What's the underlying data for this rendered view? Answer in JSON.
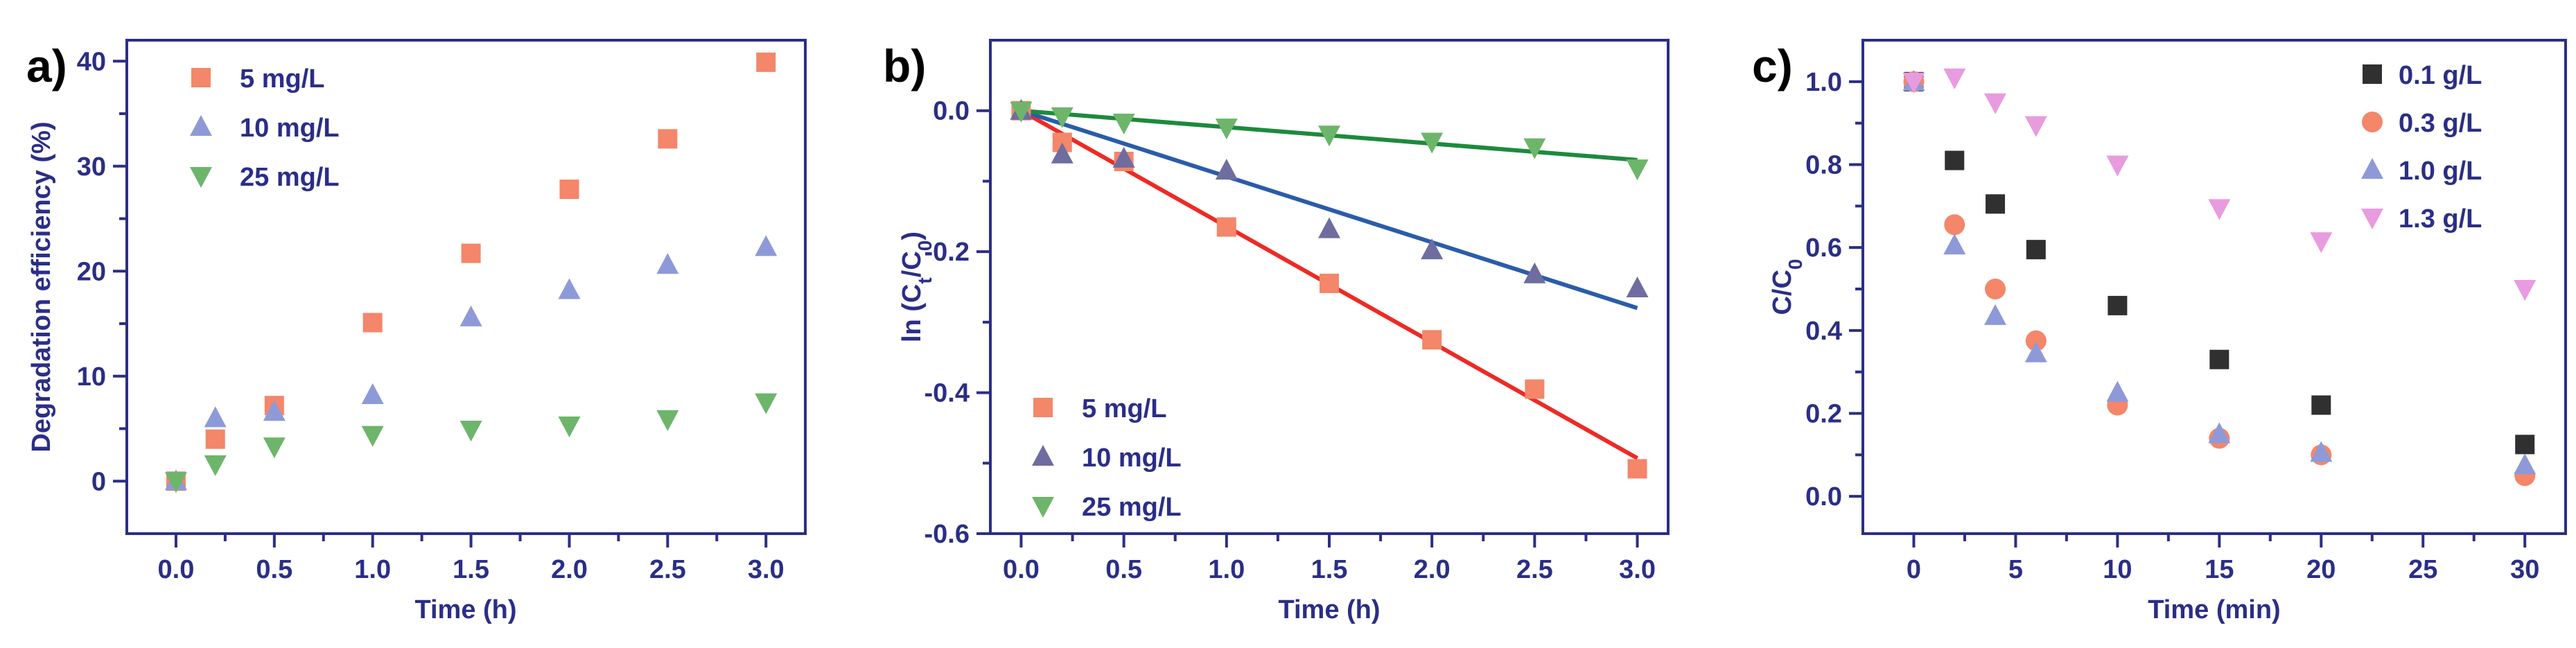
{
  "chart_data": [
    {
      "panel_label": "a)",
      "type": "scatter",
      "xlabel": "Time (h)",
      "ylabel": "Degradation efficiency (%)",
      "xlim": [
        -0.25,
        3.2
      ],
      "ylim": [
        -5,
        42
      ],
      "xticks": [
        0.0,
        0.5,
        1.0,
        1.5,
        2.0,
        2.5,
        3.0
      ],
      "xtick_labels": [
        "0.0",
        "0.5",
        "1.0",
        "1.5",
        "2.0",
        "2.5",
        "3.0"
      ],
      "yticks": [
        0,
        10,
        20,
        30,
        40
      ],
      "ytick_labels": [
        "0",
        "10",
        "20",
        "30",
        "40"
      ],
      "legend_position": "top-left",
      "series": [
        {
          "name": "5 mg/L",
          "marker": "square",
          "color": "#f4866a",
          "x": [
            0,
            0.2,
            0.5,
            1.0,
            1.5,
            2.0,
            2.5,
            3.0
          ],
          "y": [
            0,
            4.0,
            7.2,
            15.1,
            21.7,
            27.8,
            32.6,
            39.9
          ]
        },
        {
          "name": "10 mg/L",
          "marker": "triangle-up",
          "color": "#8e9ad8",
          "x": [
            0,
            0.2,
            0.5,
            1.0,
            1.5,
            2.0,
            2.5,
            3.0
          ],
          "y": [
            0,
            6.0,
            6.6,
            8.2,
            15.6,
            18.2,
            20.6,
            22.3
          ]
        },
        {
          "name": "25 mg/L",
          "marker": "triangle-down",
          "color": "#6db56a",
          "x": [
            0,
            0.2,
            0.5,
            1.0,
            1.5,
            2.0,
            2.5,
            3.0
          ],
          "y": [
            0,
            1.6,
            3.3,
            4.4,
            4.9,
            5.3,
            5.9,
            7.5
          ]
        }
      ]
    },
    {
      "panel_label": "b)",
      "type": "scatter",
      "xlabel": "Time (h)",
      "ylabel_parts": [
        "ln (C",
        "t",
        "/C",
        "0",
        ")"
      ],
      "xlim": [
        -0.15,
        3.15
      ],
      "ylim": [
        -0.6,
        0.1
      ],
      "xticks": [
        0.0,
        0.5,
        1.0,
        1.5,
        2.0,
        2.5,
        3.0
      ],
      "xtick_labels": [
        "0.0",
        "0.5",
        "1.0",
        "1.5",
        "2.0",
        "2.5",
        "3.0"
      ],
      "yticks": [
        0.0,
        -0.2,
        -0.4,
        -0.6
      ],
      "ytick_labels": [
        "0.0",
        "-0.2",
        "-0.4",
        "-0.6"
      ],
      "legend_position": "bottom-left",
      "series": [
        {
          "name": "5 mg/L",
          "marker": "square",
          "color": "#f4866a",
          "fit_color": "#ee2a24",
          "fit": [
            0,
            -0.493
          ],
          "x": [
            0,
            0.2,
            0.5,
            1.0,
            1.5,
            2.0,
            2.5,
            3.0
          ],
          "y": [
            0,
            -0.045,
            -0.072,
            -0.165,
            -0.245,
            -0.325,
            -0.395,
            -0.508
          ]
        },
        {
          "name": "10 mg/L",
          "marker": "triangle-up",
          "color": "#6f6d9f",
          "fit_color": "#2a5caa",
          "fit": [
            0,
            -0.28
          ],
          "x": [
            0,
            0.2,
            0.5,
            1.0,
            1.5,
            2.0,
            2.5,
            3.0
          ],
          "y": [
            0,
            -0.062,
            -0.068,
            -0.085,
            -0.168,
            -0.198,
            -0.232,
            -0.252
          ]
        },
        {
          "name": "25 mg/L",
          "marker": "triangle-down",
          "color": "#6db56a",
          "fit_color": "#1d8a3c",
          "fit": [
            0,
            -0.07
          ],
          "x": [
            0,
            0.2,
            0.5,
            1.0,
            1.5,
            2.0,
            2.5,
            3.0
          ],
          "y": [
            0,
            -0.008,
            -0.017,
            -0.024,
            -0.034,
            -0.044,
            -0.052,
            -0.082
          ]
        }
      ]
    },
    {
      "panel_label": "c)",
      "type": "scatter",
      "xlabel": "Time (min)",
      "ylabel_parts": [
        "C/C",
        "0"
      ],
      "xlim": [
        -2.5,
        32
      ],
      "ylim": [
        -0.09,
        1.1
      ],
      "xticks": [
        0,
        5,
        10,
        15,
        20,
        25,
        30
      ],
      "xtick_labels": [
        "0",
        "5",
        "10",
        "15",
        "20",
        "25",
        "30"
      ],
      "yticks": [
        0.0,
        0.2,
        0.4,
        0.6,
        0.8,
        1.0
      ],
      "ytick_labels": [
        "0.0",
        "0.2",
        "0.4",
        "0.6",
        "0.8",
        "1.0"
      ],
      "legend_position": "top-right",
      "series": [
        {
          "name": "0.1 g/L",
          "marker": "square",
          "color": "#303030",
          "x": [
            0,
            2,
            4,
            6,
            10,
            15,
            20,
            30
          ],
          "y": [
            1.0,
            0.81,
            0.705,
            0.595,
            0.46,
            0.33,
            0.22,
            0.125
          ]
        },
        {
          "name": "0.3 g/L",
          "marker": "circle",
          "color": "#f4866a",
          "x": [
            0,
            2,
            4,
            6,
            10,
            15,
            20,
            30
          ],
          "y": [
            1.0,
            0.655,
            0.5,
            0.375,
            0.22,
            0.14,
            0.1,
            0.05
          ]
        },
        {
          "name": "1.0 g/L",
          "marker": "triangle-up",
          "color": "#8e9ad8",
          "x": [
            0,
            2,
            4,
            6,
            10,
            15,
            20,
            30
          ],
          "y": [
            1.0,
            0.605,
            0.435,
            0.345,
            0.25,
            0.15,
            0.105,
            0.075
          ]
        },
        {
          "name": "1.3 g/L",
          "marker": "triangle-down",
          "color": "#e99be0",
          "x": [
            0,
            2,
            4,
            6,
            10,
            15,
            20,
            30
          ],
          "y": [
            1.0,
            1.01,
            0.95,
            0.895,
            0.8,
            0.695,
            0.615,
            0.5
          ]
        }
      ]
    }
  ]
}
